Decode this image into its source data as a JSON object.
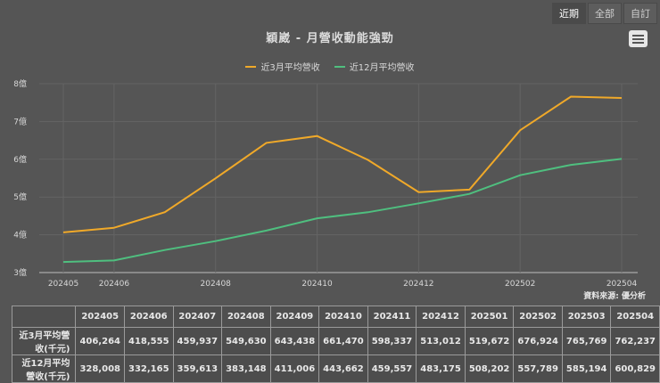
{
  "range_buttons": [
    {
      "label": "近期",
      "active": true
    },
    {
      "label": "全部",
      "active": false
    },
    {
      "label": "自訂",
      "active": false
    }
  ],
  "menu_icon": "hamburger-menu-icon",
  "title": "穎崴 - 月營收動能強勁",
  "legend": [
    {
      "label": "近3月平均營收",
      "color": "#f0a929"
    },
    {
      "label": "近12月平均營收",
      "color": "#4fbf7f"
    }
  ],
  "source": "資料來源: 優分析",
  "chart_data": {
    "type": "line",
    "title": "穎崴 - 月營收動能強勁",
    "xlabel": "",
    "ylabel": "",
    "categories": [
      "202405",
      "202406",
      "202407",
      "202408",
      "202409",
      "202410",
      "202411",
      "202412",
      "202501",
      "202502",
      "202503",
      "202504"
    ],
    "x_tick_labels": [
      "202405",
      "202406",
      "202408",
      "202410",
      "202412",
      "202502",
      "202504"
    ],
    "y_tick_labels": [
      "3億",
      "4億",
      "5億",
      "6億",
      "7億",
      "8億"
    ],
    "ylim": [
      300000,
      800000
    ],
    "unit": "千元",
    "grid": true,
    "legend_position": "top",
    "series": [
      {
        "name": "近3月平均營收",
        "color": "#f0a929",
        "values": [
          406264,
          418555,
          459937,
          549630,
          643438,
          661470,
          598337,
          513012,
          519672,
          676924,
          765769,
          762237
        ]
      },
      {
        "name": "近12月平均營收",
        "color": "#4fbf7f",
        "values": [
          328008,
          332165,
          359613,
          383148,
          411006,
          443662,
          459557,
          483175,
          508202,
          557789,
          585194,
          600829
        ]
      }
    ]
  },
  "table": {
    "headers": [
      "",
      "202405",
      "202406",
      "202407",
      "202408",
      "202409",
      "202410",
      "202411",
      "202412",
      "202501",
      "202502",
      "202503",
      "202504"
    ],
    "rows": [
      {
        "label": "近3月平均營收(千元)",
        "values": [
          "406,264",
          "418,555",
          "459,937",
          "549,630",
          "643,438",
          "661,470",
          "598,337",
          "513,012",
          "519,672",
          "676,924",
          "765,769",
          "762,237"
        ]
      },
      {
        "label": "近12月平均營收(千元)",
        "values": [
          "328,008",
          "332,165",
          "359,613",
          "383,148",
          "411,006",
          "443,662",
          "459,557",
          "483,175",
          "508,202",
          "557,789",
          "585,194",
          "600,829"
        ]
      }
    ]
  }
}
